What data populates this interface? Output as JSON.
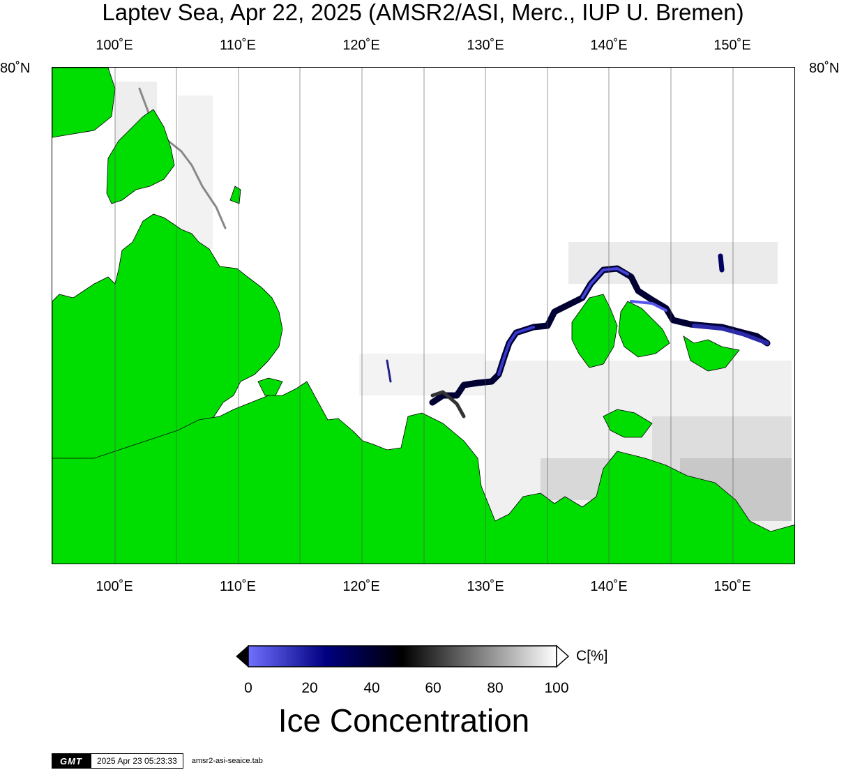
{
  "map": {
    "title": "Laptev Sea, Apr 22, 2025 (AMSR2/ASI, Merc., IUP U. Bremen)",
    "lon_ticks": [
      "100˚E",
      "110˚E",
      "120˚E",
      "130˚E",
      "140˚E",
      "150˚E"
    ],
    "lat_label": "80˚N",
    "land_color": "#00dd00",
    "ice_color": "#ffffff"
  },
  "legend": {
    "ticks": [
      "0",
      "20",
      "40",
      "60",
      "80",
      "100"
    ],
    "unit": "C[%]",
    "title": "Ice Concentration",
    "colors": [
      "#7070ff",
      "#000080",
      "#000000",
      "#ffffff"
    ]
  },
  "footer": {
    "logo": "GMT",
    "timestamp": "2025 Apr 23 05:23:33",
    "filename": "amsr2-asi-seaice.tab"
  }
}
